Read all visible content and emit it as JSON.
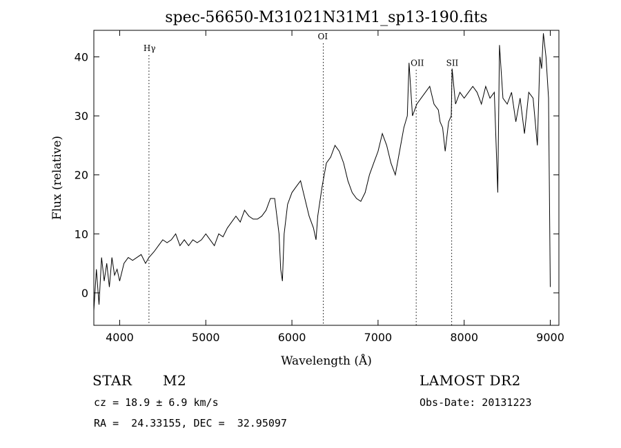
{
  "chart_data": {
    "type": "line",
    "title": "spec-56650-M31021N31M1_sp13-190.fits",
    "xlabel": "Wavelength (Å)",
    "ylabel": "Flux (relative)",
    "xlim": [
      3700,
      9100
    ],
    "ylim": [
      -5.5,
      44.5
    ],
    "xticks": [
      4000,
      5000,
      6000,
      7000,
      8000,
      9000
    ],
    "yticks": [
      0,
      10,
      20,
      30,
      40
    ],
    "grid": false,
    "line_color": "#000000",
    "series": [
      {
        "x": [
          3700,
          3730,
          3760,
          3790,
          3820,
          3850,
          3880,
          3910,
          3940,
          3970,
          4000,
          4050,
          4100,
          4150,
          4200,
          4250,
          4300,
          4340,
          4400,
          4450,
          4500,
          4550,
          4600,
          4650,
          4700,
          4750,
          4800,
          4850,
          4900,
          4950,
          5000,
          5050,
          5100,
          5150,
          5200,
          5250,
          5300,
          5350,
          5400,
          5450,
          5500,
          5550,
          5600,
          5650,
          5700,
          5750,
          5800,
          5850,
          5870,
          5890,
          5910,
          5950,
          6000,
          6050,
          6100,
          6150,
          6200,
          6250,
          6280,
          6300,
          6350,
          6400,
          6450,
          6500,
          6550,
          6600,
          6650,
          6700,
          6750,
          6800,
          6850,
          6900,
          6950,
          7000,
          7050,
          7100,
          7150,
          7200,
          7250,
          7300,
          7340,
          7360,
          7400,
          7450,
          7500,
          7550,
          7600,
          7650,
          7700,
          7720,
          7750,
          7780,
          7820,
          7850,
          7860,
          7900,
          7950,
          8000,
          8050,
          8100,
          8150,
          8200,
          8250,
          8300,
          8350,
          8390,
          8410,
          8450,
          8500,
          8550,
          8600,
          8650,
          8700,
          8750,
          8800,
          8850,
          8880,
          8900,
          8920,
          8950,
          8980,
          9000
        ],
        "y": [
          -3,
          4,
          -2,
          6,
          2,
          5,
          1,
          6,
          3,
          4,
          2,
          5,
          6,
          5.5,
          6,
          6.5,
          5,
          6,
          7,
          8,
          9,
          8.5,
          9,
          10,
          8,
          9,
          8,
          9,
          8.5,
          9,
          10,
          9,
          8,
          10,
          9.5,
          11,
          12,
          13,
          12,
          14,
          13,
          12.5,
          12.5,
          13,
          14,
          16,
          16,
          10,
          4,
          2,
          10,
          15,
          17,
          18,
          19,
          16,
          13,
          11,
          9,
          13,
          18,
          22,
          23,
          25,
          24,
          22,
          19,
          17,
          16,
          15.5,
          17,
          20,
          22,
          24,
          27,
          25,
          22,
          20,
          24,
          28,
          30,
          39,
          30,
          32,
          33,
          34,
          35,
          32,
          31,
          29,
          28,
          24,
          29,
          30,
          38,
          32,
          34,
          33,
          34,
          35,
          34,
          32,
          35,
          33,
          34,
          17,
          42,
          33,
          32,
          34,
          29,
          33,
          27,
          34,
          33,
          25,
          40,
          38,
          44,
          40,
          33,
          1
        ]
      }
    ],
    "annotations": [
      {
        "label": "Hγ",
        "x": 4340,
        "label_y": 41
      },
      {
        "label": "OI",
        "x": 6364,
        "label_y": 43
      },
      {
        "label": "OII",
        "x": 7443,
        "label_y": 38.5
      },
      {
        "label": "SII",
        "x": 7855,
        "label_y": 38.5
      }
    ]
  },
  "info": {
    "object_class": "STAR",
    "subclass": "M2",
    "survey": "LAMOST DR2",
    "cz": "cz = 18.9 ± 6.9 km/s",
    "obs_date": "Obs-Date: 20131223",
    "coords": "RA =  24.33155, DEC =  32.95097"
  }
}
